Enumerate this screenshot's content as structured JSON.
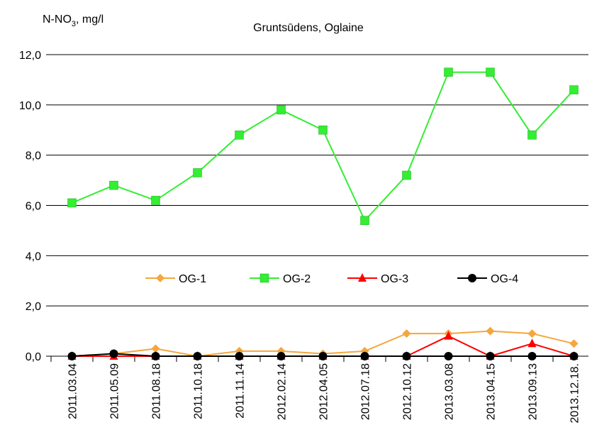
{
  "chart_data": {
    "type": "line",
    "title": "Gruntsūdens, Oglaine",
    "y_label": {
      "main": "N-NO",
      "sub": "3",
      "rest": ", mg/l"
    },
    "categories": [
      "2011.03.04",
      "2011.05.09",
      "2011.08.18",
      "2011.10.18",
      "2011.11.14",
      "2012.02.14",
      "2012.04.05",
      "2012.07.18",
      "2012.10.12",
      "2013.03.08",
      "2013.04.15",
      "2013.09.13",
      "2013.12.18."
    ],
    "series": [
      {
        "name": "OG-1",
        "color": "#f5a63c",
        "marker": "diamond",
        "values": [
          0.0,
          0.1,
          0.3,
          0.0,
          0.2,
          0.2,
          0.1,
          0.2,
          0.9,
          0.9,
          1.0,
          0.9,
          0.5
        ]
      },
      {
        "name": "OG-2",
        "color": "#33ee33",
        "marker": "square",
        "values": [
          6.1,
          6.8,
          6.2,
          7.3,
          8.8,
          9.8,
          9.0,
          5.4,
          7.2,
          11.3,
          11.3,
          8.8,
          10.6
        ]
      },
      {
        "name": "OG-3",
        "color": "#ff0000",
        "marker": "triangle",
        "values": [
          0.0,
          0.0,
          0.0,
          0.0,
          0.0,
          0.0,
          0.0,
          0.0,
          0.0,
          0.8,
          0.0,
          0.5,
          0.0
        ]
      },
      {
        "name": "OG-4",
        "color": "#000000",
        "marker": "circle",
        "values": [
          0.0,
          0.1,
          0.0,
          0.0,
          0.0,
          0.0,
          0.0,
          0.0,
          0.0,
          0.0,
          0.0,
          0.0,
          0.0
        ]
      }
    ],
    "ylim": [
      0,
      12
    ],
    "yticks": [
      {
        "value": 0,
        "label": "0,0"
      },
      {
        "value": 2,
        "label": "2,0"
      },
      {
        "value": 4,
        "label": "4,0"
      },
      {
        "value": 6,
        "label": "6,0"
      },
      {
        "value": 8,
        "label": "8,0"
      },
      {
        "value": 10,
        "label": "10,0"
      },
      {
        "value": 12,
        "label": "12,0"
      }
    ],
    "grid": true,
    "legend": "center"
  }
}
